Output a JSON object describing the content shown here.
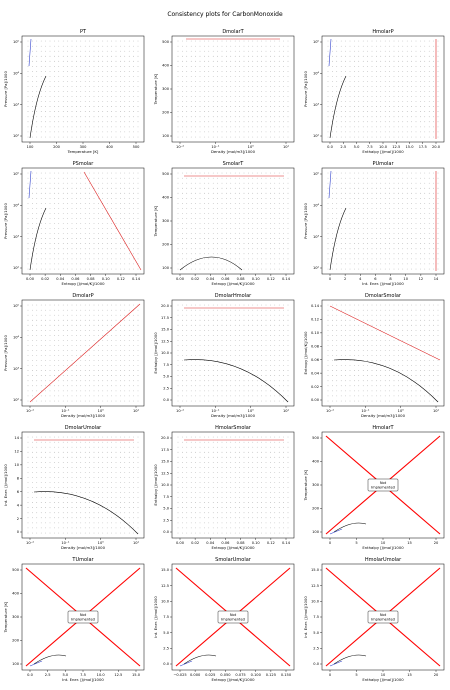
{
  "page_title": "Consistency plots for CarbonMonoxide",
  "chart_data": [
    {
      "type": "scatter",
      "title": "PT",
      "xlabel": "Temperature [K]",
      "ylabel": "Pressure [Pa]/1000",
      "xlim": [
        50,
        520
      ],
      "ylim": [
        10,
        150000
      ],
      "ylog": true,
      "xticks": [
        "100",
        "200",
        "300",
        "400",
        "500"
      ],
      "yticks": [
        "10²",
        "10³",
        "10⁴",
        "10⁵"
      ],
      "overlays": [
        "sat"
      ],
      "grid": true,
      "note": ""
    },
    {
      "type": "scatter",
      "title": "DmolarT",
      "xlabel": "Density [mol/m3]/1000",
      "ylabel": "Temperature [K]",
      "xlim": [
        0.001,
        40
      ],
      "ylim": [
        50,
        520
      ],
      "xlog": true,
      "xticks": [
        "10⁻²",
        "10⁻¹",
        "10⁰",
        "10¹"
      ],
      "yticks": [
        "100",
        "200",
        "300",
        "400",
        "500"
      ],
      "overlays": [
        "bluetop"
      ],
      "grid": true,
      "note": ""
    },
    {
      "type": "scatter",
      "title": "HmolarP",
      "xlabel": "Enthalpy [J/mol]/1000",
      "ylabel": "Pressure [Pa]/1000",
      "xlim": [
        -2,
        20
      ],
      "ylim": [
        10,
        150000
      ],
      "ylog": true,
      "xticks": [
        "0.0",
        "2.5",
        "5.0",
        "7.5",
        "10.0",
        "12.5",
        "15.0",
        "17.5",
        "20.0"
      ],
      "yticks": [
        "10²",
        "10³",
        "10⁴",
        "10⁵"
      ],
      "overlays": [
        "sat",
        "redright"
      ],
      "grid": true,
      "note": ""
    },
    {
      "type": "scatter",
      "title": "PSmolar",
      "xlabel": "Entropy [J/mol/K]/1000",
      "ylabel": "Pressure [Pa]/1000",
      "xlim": [
        -0.01,
        0.145
      ],
      "ylim": [
        10,
        150000
      ],
      "ylog": true,
      "xticks": [
        "0.00",
        "0.02",
        "0.04",
        "0.06",
        "0.08",
        "0.10",
        "0.12",
        "0.14"
      ],
      "yticks": [
        "10²",
        "10³",
        "10⁴",
        "10⁵"
      ],
      "overlays": [
        "sat",
        "reddiag"
      ],
      "grid": true,
      "note": ""
    },
    {
      "type": "scatter",
      "title": "SmolarT",
      "xlabel": "Entropy [J/mol/K]/1000",
      "ylabel": "Temperature [K]",
      "xlim": [
        -0.01,
        0.145
      ],
      "ylim": [
        50,
        520
      ],
      "xticks": [
        "0.00",
        "0.02",
        "0.04",
        "0.06",
        "0.08",
        "0.10",
        "0.12",
        "0.14"
      ],
      "yticks": [
        "100",
        "200",
        "300",
        "400",
        "500"
      ],
      "overlays": [
        "dome",
        "redtop"
      ],
      "grid": true,
      "note": ""
    },
    {
      "type": "scatter",
      "title": "PUmolar",
      "xlabel": "Int. Ener. [J/mol]/1000",
      "ylabel": "Pressure [Pa]/1000",
      "xlim": [
        -2,
        15
      ],
      "ylim": [
        10,
        150000
      ],
      "ylog": true,
      "xticks": [
        "0",
        "2",
        "4",
        "6",
        "8",
        "10",
        "12",
        "14"
      ],
      "yticks": [
        "10²",
        "10³",
        "10⁴",
        "10⁵"
      ],
      "overlays": [
        "sat",
        "redright"
      ],
      "grid": true,
      "note": ""
    },
    {
      "type": "scatter",
      "title": "DmolarP",
      "xlabel": "Density [mol/m3]/1000",
      "ylabel": "Pressure [Pa]/1000",
      "xlim": [
        0.001,
        40
      ],
      "ylim": [
        10,
        150000
      ],
      "xlog": true,
      "ylog": true,
      "xticks": [
        "10⁻²",
        "10⁻¹",
        "10⁰",
        "10¹"
      ],
      "yticks": [
        "10²",
        "10³",
        "10⁴",
        "10⁵"
      ],
      "overlays": [
        "reddiag2"
      ],
      "grid": true,
      "note": ""
    },
    {
      "type": "scatter",
      "title": "DmolarHmolar",
      "xlabel": "Density [mol/m3]/1000",
      "ylabel": "Enthalpy [J/mol]/1000",
      "xlim": [
        0.001,
        40
      ],
      "ylim": [
        -1,
        20
      ],
      "xlog": true,
      "xticks": [
        "10⁻²",
        "10⁻¹",
        "10⁰",
        "10¹"
      ],
      "yticks": [
        "0.0",
        "2.5",
        "5.0",
        "7.5",
        "10.0",
        "12.5",
        "15.0",
        "17.5",
        "20.0"
      ],
      "overlays": [
        "redtop",
        "curve"
      ],
      "grid": true,
      "note": ""
    },
    {
      "type": "scatter",
      "title": "DmolarSmolar",
      "xlabel": "Density [mol/m3]/1000",
      "ylabel": "Entropy [J/mol/K]/1000",
      "xlim": [
        0.001,
        40
      ],
      "ylim": [
        -0.005,
        0.145
      ],
      "xlog": true,
      "xticks": [
        "10⁻²",
        "10⁻¹",
        "10⁰",
        "10¹"
      ],
      "yticks": [
        "0.00",
        "0.02",
        "0.04",
        "0.06",
        "0.08",
        "0.10",
        "0.12",
        "0.14"
      ],
      "overlays": [
        "reddiagdown",
        "curve"
      ],
      "grid": true,
      "note": ""
    },
    {
      "type": "scatter",
      "title": "DmolarUmolar",
      "xlabel": "Density [mol/m3]/1000",
      "ylabel": "Int. Ener. [J/mol]/1000",
      "xlim": [
        0.001,
        40
      ],
      "ylim": [
        -1,
        15
      ],
      "xlog": true,
      "xticks": [
        "10⁻²",
        "10⁻¹",
        "10⁰",
        "10¹"
      ],
      "yticks": [
        "0",
        "2",
        "4",
        "6",
        "8",
        "10",
        "12",
        "14"
      ],
      "overlays": [
        "redtop",
        "curve"
      ],
      "grid": true,
      "note": ""
    },
    {
      "type": "scatter",
      "title": "HmolarSmolar",
      "xlabel": "Entropy [J/mol/K]/1000",
      "ylabel": "Enthalpy [J/mol]/1000",
      "xlim": [
        -0.01,
        0.145
      ],
      "ylim": [
        -1,
        20
      ],
      "xticks": [
        "0.00",
        "0.02",
        "0.04",
        "0.06",
        "0.08",
        "0.10",
        "0.12",
        "0.14"
      ],
      "yticks": [
        "0.0",
        "2.5",
        "5.0",
        "7.5",
        "10.0",
        "12.5",
        "15.0",
        "17.5",
        "20.0"
      ],
      "overlays": [
        "redtop"
      ],
      "grid": true,
      "note": ""
    },
    {
      "type": "scatter",
      "title": "HmolarT",
      "xlabel": "Enthalpy [J/mol]/1000",
      "ylabel": "Temperature [K]",
      "xlim": [
        -2,
        22
      ],
      "ylim": [
        50,
        520
      ],
      "xticks": [
        "0",
        "5",
        "10",
        "15",
        "20"
      ],
      "yticks": [
        "100",
        "200",
        "300",
        "400",
        "500"
      ],
      "overlays": [
        "cross",
        "smallcurve"
      ],
      "grid": false,
      "note": "Not\nImplemented"
    },
    {
      "type": "scatter",
      "title": "TUmolar",
      "xlabel": "Int. Ener. [J/mol]/1000",
      "ylabel": "Temperature [K]",
      "xlim": [
        -2,
        15
      ],
      "ylim": [
        50,
        520
      ],
      "xticks": [
        "0.0",
        "2.5",
        "5.0",
        "7.5",
        "10.0",
        "12.5",
        "15.0"
      ],
      "yticks": [
        "100",
        "200",
        "300",
        "400",
        "500"
      ],
      "overlays": [
        "cross",
        "smallcurve"
      ],
      "grid": false,
      "note": "Not\nImplemented"
    },
    {
      "type": "scatter",
      "title": "SmolarUmolar",
      "xlabel": "Entropy [J/mol/K]/1000",
      "ylabel": "Int. Ener. [J/mol]/1000",
      "xlim": [
        -0.025,
        0.155
      ],
      "ylim": [
        -1,
        16
      ],
      "xticks": [
        "−0.025",
        "0.000",
        "0.025",
        "0.050",
        "0.075",
        "0.100",
        "0.125",
        "0.150"
      ],
      "yticks": [
        "0.0",
        "2.5",
        "5.0",
        "7.5",
        "10.0",
        "12.5",
        "15.0"
      ],
      "overlays": [
        "cross",
        "smallcurve"
      ],
      "grid": false,
      "note": "Not\nImplemented"
    },
    {
      "type": "scatter",
      "title": "HmolarUmolar",
      "xlabel": "Enthalpy [J/mol]/1000",
      "ylabel": "Int. Ener. [J/mol]/1000",
      "xlim": [
        -2,
        22
      ],
      "ylim": [
        -1,
        16
      ],
      "xticks": [
        "0",
        "5",
        "10",
        "15",
        "20"
      ],
      "yticks": [
        "0.0",
        "2.5",
        "5.0",
        "7.5",
        "10.0",
        "12.5",
        "15.0"
      ],
      "overlays": [
        "cross",
        "smallcurve"
      ],
      "grid": false,
      "note": "Not\nImplemented"
    }
  ]
}
